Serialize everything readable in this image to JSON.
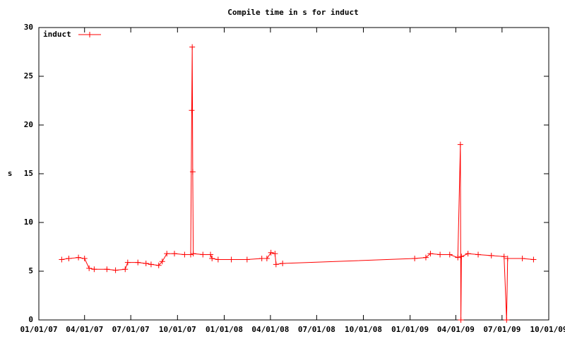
{
  "chart_data": {
    "type": "line",
    "title": "Compile time in s for induct",
    "y_label": "s",
    "x": [
      "02/15/07",
      "03/01/07",
      "03/20/07",
      "04/01/07",
      "04/10/07",
      "04/20/07",
      "05/15/07",
      "06/01/07",
      "06/20/07",
      "06/25/07",
      "07/15/07",
      "07/31/07",
      "08/10/07",
      "08/25/07",
      "09/01/07",
      "09/10/07",
      "09/25/07",
      "10/15/07",
      "10/27/07",
      "10/29/07",
      "10/30/07",
      "10/31/07",
      "11/01/07",
      "11/20/07",
      "12/05/07",
      "12/08/07",
      "12/20/07",
      "01/15/08",
      "02/15/08",
      "03/15/08",
      "03/25/08",
      "04/02/08",
      "04/10/08",
      "04/12/08",
      "04/25/08",
      "01/10/09",
      "02/01/09",
      "02/10/09",
      "03/01/09",
      "03/20/09",
      "04/05/09",
      "04/10/09",
      "04/11/09",
      "04/12/09",
      "04/25/09",
      "05/15/09",
      "06/10/09",
      "07/05/09",
      "07/10/09",
      "07/12/09",
      "08/10/09",
      "09/01/09"
    ],
    "series": [
      {
        "name": "induct",
        "color": "#ff0000",
        "values": [
          6.2,
          6.3,
          6.4,
          6.3,
          5.3,
          5.2,
          5.2,
          5.1,
          5.2,
          5.9,
          5.9,
          5.8,
          5.7,
          5.6,
          6.0,
          6.8,
          6.8,
          6.7,
          6.7,
          21.5,
          28,
          15.2,
          6.8,
          6.7,
          6.7,
          6.3,
          6.2,
          6.2,
          6.2,
          6.3,
          6.3,
          6.9,
          6.8,
          5.7,
          5.8,
          6.3,
          6.4,
          6.8,
          6.7,
          6.7,
          6.4,
          18,
          0,
          6.5,
          6.8,
          6.7,
          6.6,
          6.5,
          0,
          6.3,
          6.3,
          6.2
        ]
      }
    ],
    "xlim": [
      "01/01/07",
      "10/01/09"
    ],
    "xticks": [
      "01/01/07",
      "04/01/07",
      "07/01/07",
      "10/01/07",
      "01/01/08",
      "04/01/08",
      "07/01/08",
      "10/01/08",
      "01/01/09",
      "04/01/09",
      "07/01/09",
      "10/01/09"
    ],
    "ylim": [
      0,
      30
    ],
    "yticks": [
      0,
      5,
      10,
      15,
      20,
      25,
      30
    ],
    "legend": "top-left"
  }
}
